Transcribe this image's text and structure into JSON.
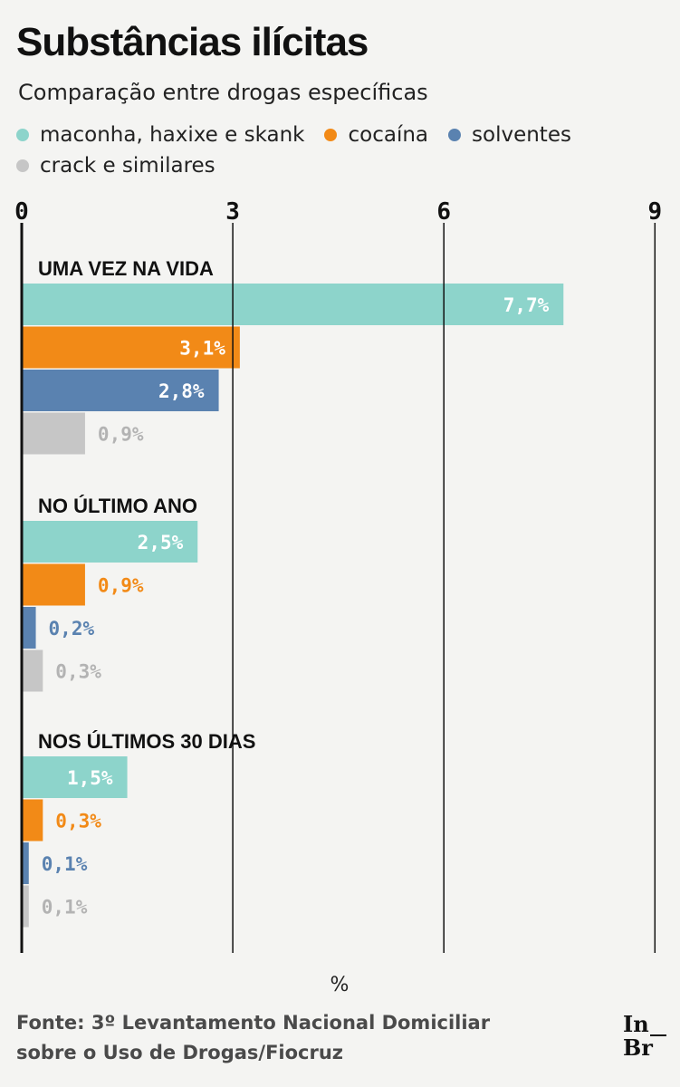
{
  "colors": {
    "maconha": "#8dd4cb",
    "cocaina": "#f28a17",
    "solventes": "#5a82b0",
    "crack": "#c6c6c6",
    "axis": "#111111"
  },
  "legend": [
    {
      "label": "maconha, haxixe e skank",
      "color": "#8dd4cb"
    },
    {
      "label": "cocaína",
      "color": "#f28a17"
    },
    {
      "label": "solventes",
      "color": "#5a82b0"
    },
    {
      "label": "crack e similares",
      "color": "#c6c6c6"
    }
  ],
  "chart_data": {
    "type": "bar",
    "orientation": "horizontal",
    "title": "Substâncias ilícitas",
    "subtitle": "Comparação entre drogas específicas",
    "xlabel": "%",
    "xlim": [
      0,
      9
    ],
    "xticks": [
      0,
      3,
      6,
      9
    ],
    "xtick_labels": [
      "0",
      "3",
      "6",
      "9"
    ],
    "grid": true,
    "legend_position": "top",
    "series_names": [
      "maconha, haxixe e skank",
      "cocaína",
      "solventes",
      "crack e similares"
    ],
    "groups": [
      {
        "label": "UMA VEZ NA VIDA",
        "values": [
          7.7,
          3.1,
          2.8,
          0.9
        ],
        "labels": [
          "7,7%",
          "3,1%",
          "2,8%",
          "0,9%"
        ]
      },
      {
        "label": "NO ÚLTIMO ANO",
        "values": [
          2.5,
          0.9,
          0.2,
          0.3
        ],
        "labels": [
          "2,5%",
          "0,9%",
          "0,2%",
          "0,3%"
        ]
      },
      {
        "label": "NOS ÚLTIMOS 30 DIAS",
        "values": [
          1.5,
          0.3,
          0.1,
          0.1
        ],
        "labels": [
          "1,5%",
          "0,3%",
          "0,1%",
          "0,1%"
        ]
      }
    ]
  },
  "source": {
    "line1": "Fonte: 3º Levantamento Nacional Domiciliar",
    "line2": "sobre o Uso de Drogas/Fiocruz"
  },
  "logo": {
    "line1": "In",
    "line2": "Br"
  }
}
